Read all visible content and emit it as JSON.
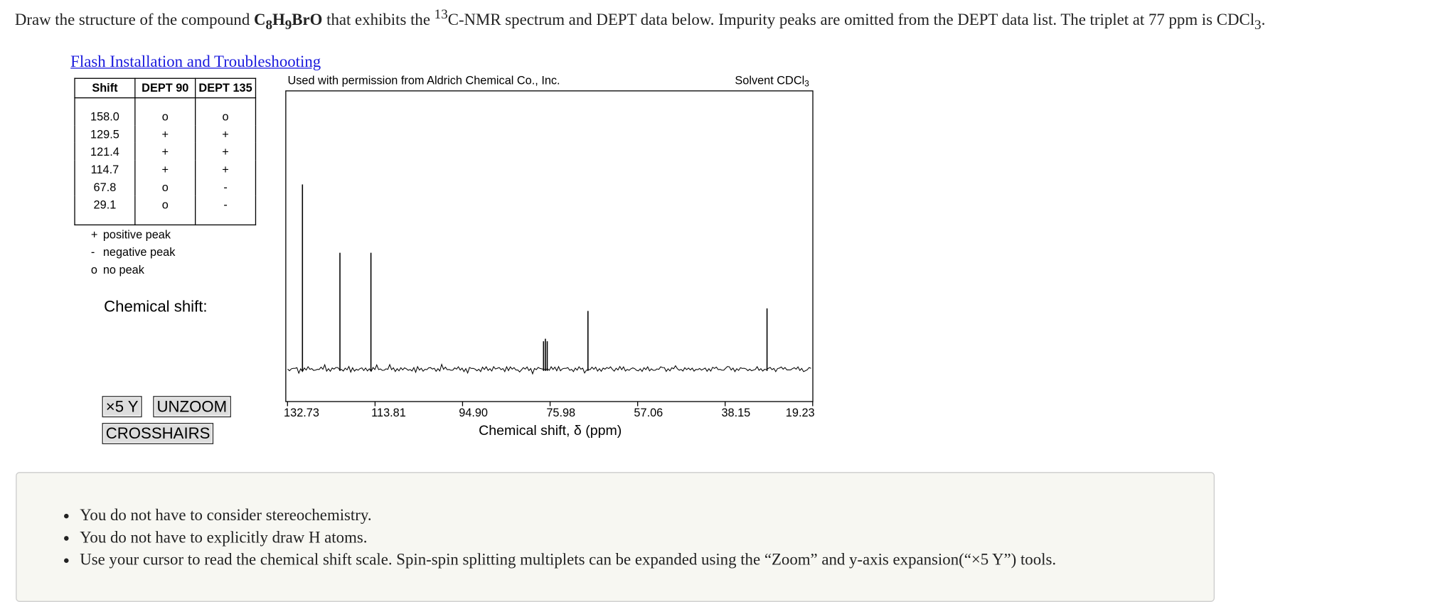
{
  "question": {
    "text_1": "Draw the structure of the compound ",
    "formula": [
      "C",
      "8",
      "H",
      "9",
      "BrO"
    ],
    "text_2": " that exhibits the ",
    "isotope": "13",
    "text_3": "C-NMR spectrum and DEPT data below. Impurity peaks are omitted from the DEPT data list. The triplet at 77 ppm is CDCl",
    "text_4": "3",
    "text_5": "."
  },
  "link": "Flash Installation and Troubleshooting",
  "dept_table": {
    "headers": [
      "Shift",
      "DEPT 90",
      "DEPT 135"
    ],
    "rows": [
      [
        "158.0",
        "o",
        "o"
      ],
      [
        "129.5",
        "+",
        "+"
      ],
      [
        "121.4",
        "+",
        "+"
      ],
      [
        "114.7",
        "+",
        "+"
      ],
      [
        "67.8",
        "o",
        "-"
      ],
      [
        "29.1",
        "o",
        "-"
      ]
    ]
  },
  "legend": [
    {
      "symbol": "+",
      "text": "positive peak"
    },
    {
      "symbol": "-",
      "text": "negative peak"
    },
    {
      "symbol": "o",
      "text": "no peak"
    }
  ],
  "chemical_shift_label": "Chemical shift:",
  "buttons": [
    "×5 Y",
    "UNZOOM",
    "CROSSHAIRS"
  ],
  "spectrum": {
    "credit": "Used with permission from Aldrich Chemical Co., Inc.",
    "solvent": "Solvent CDCl",
    "solvent_sub": "3",
    "x_label": "Chemical shift, δ (ppm)",
    "xlim": [
      133.1,
      19.2
    ],
    "xticks": [
      132.73,
      113.81,
      {
        "value": 94.9,
        "label": "94.90"
      },
      75.98,
      57.06,
      38.15,
      19.23
    ],
    "ylim": [
      0,
      110
    ],
    "peaks": [
      {
        "shift": 129.5,
        "height": 73
      },
      {
        "shift": 121.4,
        "height": 46
      },
      {
        "shift": 114.7,
        "height": 46
      },
      {
        "shift": 77.4,
        "height": 11
      },
      {
        "shift": 77.0,
        "height": 12
      },
      {
        "shift": 76.6,
        "height": 11
      },
      {
        "shift": 67.8,
        "height": 23
      },
      {
        "shift": 29.1,
        "height": 24
      }
    ]
  },
  "notes": [
    "You do not have to consider stereochemistry.",
    "You do not have to explicitly draw H atoms.",
    "Use your cursor to read the chemical shift scale. Spin-spin splitting multiplets can be expanded using the “Zoom” and y-axis expansion(“×5 Y”) tools."
  ]
}
